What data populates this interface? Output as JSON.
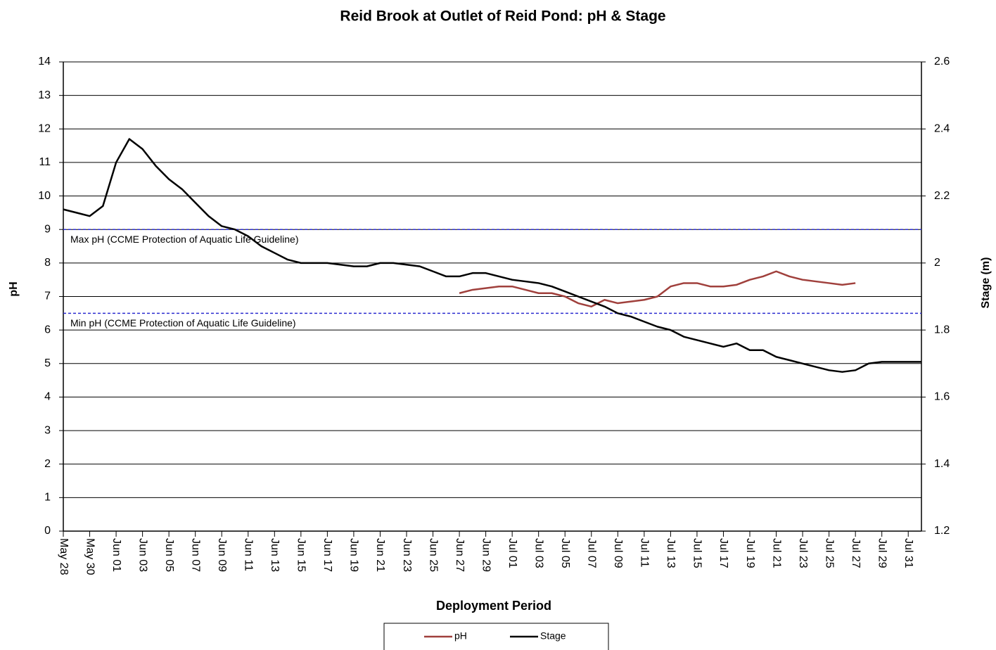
{
  "chart_data": {
    "type": "line",
    "title": "Reid Brook at Outlet of Reid Pond: pH & Stage",
    "x_label": "Deployment Period",
    "y_label": "pH",
    "y2_label": "Stage (m)",
    "x": [
      "May 28",
      "May 29",
      "May 30",
      "May 31",
      "Jun 01",
      "Jun 02",
      "Jun 03",
      "Jun 04",
      "Jun 05",
      "Jun 06",
      "Jun 07",
      "Jun 08",
      "Jun 09",
      "Jun 10",
      "Jun 11",
      "Jun 12",
      "Jun 13",
      "Jun 14",
      "Jun 15",
      "Jun 16",
      "Jun 17",
      "Jun 18",
      "Jun 19",
      "Jun 20",
      "Jun 21",
      "Jun 22",
      "Jun 23",
      "Jun 24",
      "Jun 25",
      "Jun 26",
      "Jun 27",
      "Jun 28",
      "Jun 29",
      "Jun 30",
      "Jul 01",
      "Jul 02",
      "Jul 03",
      "Jul 04",
      "Jul 05",
      "Jul 06",
      "Jul 07",
      "Jul 08",
      "Jul 09",
      "Jul 10",
      "Jul 11",
      "Jul 12",
      "Jul 13",
      "Jul 14",
      "Jul 15",
      "Jul 16",
      "Jul 17",
      "Jul 18",
      "Jul 19",
      "Jul 20",
      "Jul 21",
      "Jul 22",
      "Jul 23",
      "Jul 24",
      "Jul 25",
      "Jul 26",
      "Jul 27",
      "Jul 28",
      "Jul 29",
      "Jul 30",
      "Jul 31",
      "Aug 01"
    ],
    "xlim": [
      "May 28",
      "Aug 01"
    ],
    "xticks": [
      "May 28",
      "May 30",
      "Jun 01",
      "Jun 03",
      "Jun 05",
      "Jun 07",
      "Jun 09",
      "Jun 11",
      "Jun 13",
      "Jun 15",
      "Jun 17",
      "Jun 19",
      "Jun 21",
      "Jun 23",
      "Jun 25",
      "Jun 27",
      "Jun 29",
      "Jul 01",
      "Jul 03",
      "Jul 05",
      "Jul 07",
      "Jul 09",
      "Jul 11",
      "Jul 13",
      "Jul 15",
      "Jul 17",
      "Jul 19",
      "Jul 21",
      "Jul 23",
      "Jul 25",
      "Jul 27",
      "Jul 29",
      "Jul 31"
    ],
    "ylim": [
      0,
      14
    ],
    "yticks": [
      0,
      1,
      2,
      3,
      4,
      5,
      6,
      7,
      8,
      9,
      10,
      11,
      12,
      13,
      14
    ],
    "y2lim": [
      1.2,
      2.6
    ],
    "y2ticks": [
      1.2,
      1.4,
      1.6,
      1.8,
      2,
      2.2,
      2.4,
      2.6
    ],
    "grid": true,
    "series": [
      {
        "name": "pH",
        "color": "#a0403c",
        "values": [
          null,
          null,
          null,
          null,
          null,
          null,
          null,
          null,
          null,
          null,
          null,
          null,
          null,
          null,
          null,
          null,
          null,
          null,
          null,
          null,
          null,
          null,
          null,
          null,
          null,
          null,
          null,
          null,
          null,
          null,
          7.1,
          7.2,
          7.25,
          7.3,
          7.3,
          7.2,
          7.1,
          7.1,
          7.0,
          6.8,
          6.7,
          6.9,
          6.8,
          6.85,
          6.9,
          7.0,
          7.3,
          7.4,
          7.4,
          7.3,
          7.3,
          7.35,
          7.5,
          7.6,
          7.75,
          7.6,
          7.5,
          7.45,
          7.4,
          7.35,
          7.4,
          null,
          null,
          null,
          null,
          null
        ]
      },
      {
        "name": "Stage",
        "color": "#000000",
        "axis": "y2",
        "values": [
          2.16,
          2.15,
          2.14,
          2.17,
          2.3,
          2.37,
          2.34,
          2.29,
          2.25,
          2.22,
          2.18,
          2.14,
          2.11,
          2.1,
          2.08,
          2.05,
          2.03,
          2.01,
          2.0,
          2.0,
          2.0,
          1.995,
          1.99,
          1.99,
          2.0,
          2.0,
          1.995,
          1.99,
          1.975,
          1.96,
          1.96,
          1.97,
          1.97,
          1.96,
          1.95,
          1.945,
          1.94,
          1.93,
          1.915,
          1.9,
          1.885,
          1.87,
          1.85,
          1.84,
          1.825,
          1.81,
          1.8,
          1.78,
          1.77,
          1.76,
          1.75,
          1.76,
          1.74,
          1.74,
          1.72,
          1.71,
          1.7,
          1.69,
          1.68,
          1.675,
          1.68,
          1.7,
          1.705,
          1.705,
          1.705,
          1.705
        ]
      }
    ],
    "reference_lines": [
      {
        "value": 9,
        "label": "Max pH  (CCME  Protection of Aquatic Life Guideline)",
        "color": "#2b2bd0"
      },
      {
        "value": 6.5,
        "label": "Min pH  (CCME  Protection of Aquatic Life Guideline)",
        "color": "#2b2bd0"
      }
    ]
  }
}
